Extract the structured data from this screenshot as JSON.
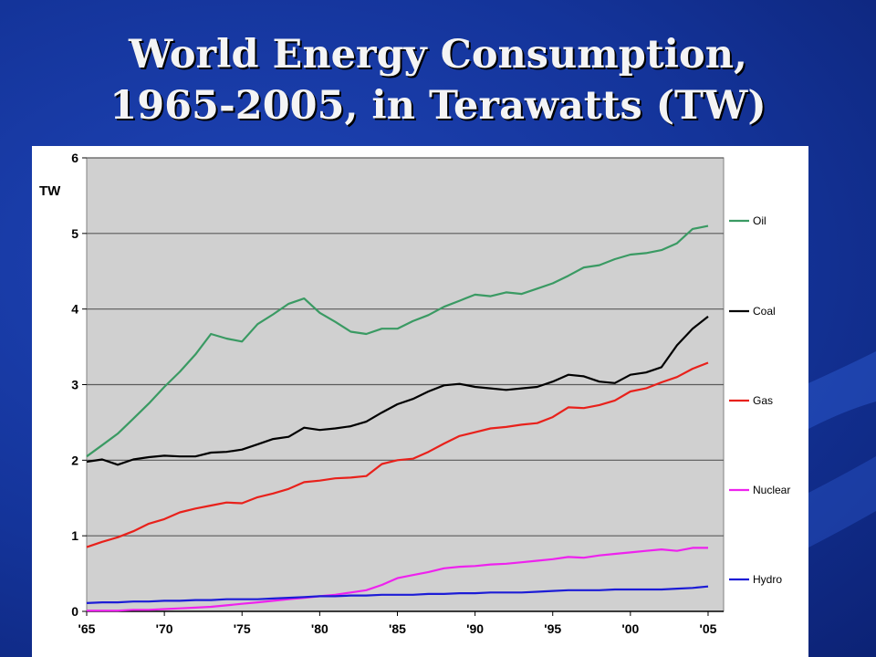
{
  "slide": {
    "title_line1": "World Energy Consumption,",
    "title_line2": "1965-2005, in Terawatts (TW)"
  },
  "colors": {
    "background": "#14349a",
    "plot_area": "#d0d0d0",
    "Oil": "#3a9a63",
    "Coal": "#000000",
    "Gas": "#e8211b",
    "Nuclear": "#ee22ee",
    "Hydro": "#1c1cd6"
  },
  "chart_data": {
    "type": "line",
    "ylabel": "TW",
    "ylim": [
      0,
      6
    ],
    "yticks": [
      0,
      1,
      2,
      3,
      4,
      5,
      6
    ],
    "xlim": [
      1965,
      2006
    ],
    "xticks": [
      1965,
      1970,
      1975,
      1980,
      1985,
      1990,
      1995,
      2000,
      2005
    ],
    "xtick_labels": [
      "'65",
      "'70",
      "'75",
      "'80",
      "'85",
      "'90",
      "'95",
      "'00",
      "'05"
    ],
    "grid": "horizontal",
    "legend": "right",
    "x": [
      1965,
      1966,
      1967,
      1968,
      1969,
      1970,
      1971,
      1972,
      1973,
      1974,
      1975,
      1976,
      1977,
      1978,
      1979,
      1980,
      1981,
      1982,
      1983,
      1984,
      1985,
      1986,
      1987,
      1988,
      1989,
      1990,
      1991,
      1992,
      1993,
      1994,
      1995,
      1996,
      1997,
      1998,
      1999,
      2000,
      2001,
      2002,
      2003,
      2004,
      2005
    ],
    "series": [
      {
        "name": "Oil",
        "values": [
          2.05,
          2.2,
          2.35,
          2.55,
          2.75,
          2.97,
          3.17,
          3.4,
          3.67,
          3.61,
          3.57,
          3.8,
          3.93,
          4.07,
          4.14,
          3.95,
          3.83,
          3.7,
          3.67,
          3.74,
          3.74,
          3.84,
          3.92,
          4.03,
          4.11,
          4.19,
          4.17,
          4.22,
          4.2,
          4.27,
          4.34,
          4.44,
          4.55,
          4.58,
          4.66,
          4.72,
          4.74,
          4.78,
          4.87,
          5.06,
          5.1
        ]
      },
      {
        "name": "Coal",
        "values": [
          1.98,
          2.01,
          1.94,
          2.01,
          2.04,
          2.06,
          2.05,
          2.05,
          2.1,
          2.11,
          2.14,
          2.21,
          2.28,
          2.31,
          2.43,
          2.4,
          2.42,
          2.45,
          2.51,
          2.63,
          2.74,
          2.81,
          2.91,
          2.99,
          3.01,
          2.97,
          2.95,
          2.93,
          2.95,
          2.97,
          3.04,
          3.13,
          3.11,
          3.04,
          3.02,
          3.13,
          3.16,
          3.23,
          3.52,
          3.74,
          3.9
        ]
      },
      {
        "name": "Gas",
        "values": [
          0.85,
          0.92,
          0.98,
          1.06,
          1.16,
          1.22,
          1.31,
          1.36,
          1.4,
          1.44,
          1.43,
          1.51,
          1.56,
          1.62,
          1.71,
          1.73,
          1.76,
          1.77,
          1.79,
          1.95,
          2.0,
          2.02,
          2.11,
          2.22,
          2.32,
          2.37,
          2.42,
          2.44,
          2.47,
          2.49,
          2.57,
          2.7,
          2.69,
          2.73,
          2.79,
          2.91,
          2.95,
          3.03,
          3.1,
          3.21,
          3.29
        ]
      },
      {
        "name": "Nuclear",
        "values": [
          0.01,
          0.01,
          0.01,
          0.02,
          0.02,
          0.03,
          0.04,
          0.05,
          0.06,
          0.08,
          0.1,
          0.12,
          0.14,
          0.16,
          0.18,
          0.2,
          0.22,
          0.25,
          0.28,
          0.35,
          0.44,
          0.48,
          0.52,
          0.57,
          0.59,
          0.6,
          0.62,
          0.63,
          0.65,
          0.67,
          0.69,
          0.72,
          0.71,
          0.74,
          0.76,
          0.78,
          0.8,
          0.82,
          0.8,
          0.84,
          0.84
        ]
      },
      {
        "name": "Hydro",
        "values": [
          0.11,
          0.12,
          0.12,
          0.13,
          0.13,
          0.14,
          0.14,
          0.15,
          0.15,
          0.16,
          0.16,
          0.16,
          0.17,
          0.18,
          0.19,
          0.2,
          0.2,
          0.21,
          0.21,
          0.22,
          0.22,
          0.22,
          0.23,
          0.23,
          0.24,
          0.24,
          0.25,
          0.25,
          0.25,
          0.26,
          0.27,
          0.28,
          0.28,
          0.28,
          0.29,
          0.29,
          0.29,
          0.29,
          0.3,
          0.31,
          0.33
        ]
      }
    ]
  }
}
